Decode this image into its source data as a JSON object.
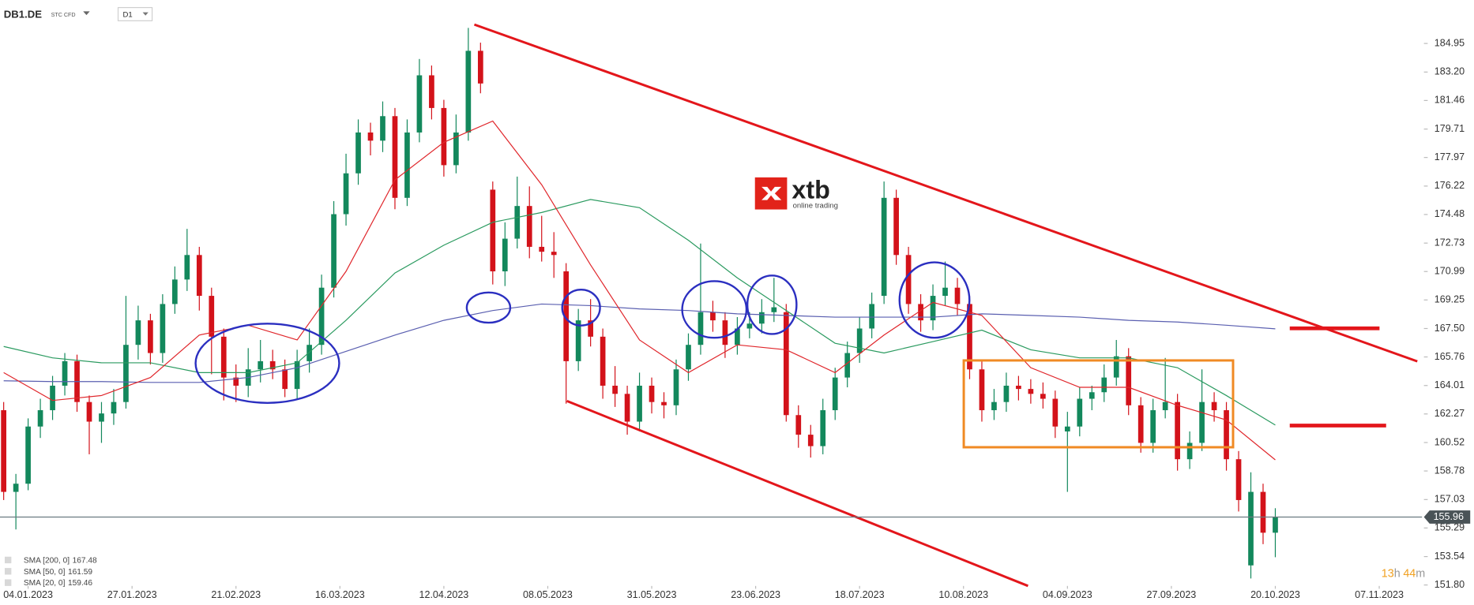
{
  "header": {
    "symbol": "DB1.DE",
    "instrument": "STC CFD",
    "timeframe": "D1"
  },
  "logo": {
    "brand": "xtb",
    "tagline": "online trading"
  },
  "timer": [
    "13",
    "h",
    "44",
    "m"
  ],
  "chart_data": {
    "type": "candlestick",
    "up_color": "#13885c",
    "down_color": "#d3121a",
    "x": [
      0,
      2,
      4,
      6,
      8,
      10,
      12,
      14,
      16,
      18,
      20,
      22,
      24,
      26,
      28,
      30,
      32,
      34,
      36,
      38,
      40,
      42,
      44,
      46,
      48,
      50,
      52,
      54,
      56,
      58,
      60,
      62,
      64,
      66,
      68,
      70,
      72,
      74,
      76,
      78,
      80,
      82,
      84,
      86,
      88,
      90,
      92,
      94,
      96,
      98,
      100,
      102,
      104,
      106,
      108,
      110,
      112,
      114,
      116,
      118,
      120,
      122,
      124,
      126,
      128,
      130,
      132,
      134,
      136,
      138,
      140,
      142,
      144,
      146,
      148,
      150,
      152,
      154,
      156,
      158,
      160,
      162,
      164,
      166,
      168,
      170,
      172,
      174,
      176,
      178,
      180,
      182,
      184,
      186,
      188,
      190,
      192,
      194,
      196,
      198,
      200,
      202,
      204,
      206,
      208
    ],
    "open": [
      162.5,
      157.5,
      158,
      161.5,
      162.5,
      164,
      165.5,
      163,
      161.8,
      162.3,
      163,
      166.5,
      168,
      166,
      169,
      170.5,
      172,
      169.5,
      167,
      164.5,
      164,
      165,
      165.5,
      165,
      163.8,
      165.5,
      166.5,
      170,
      174.5,
      177,
      179.5,
      179,
      180.5,
      175.5,
      179.5,
      183,
      181,
      177.5,
      179.5,
      184.5,
      176,
      171,
      173,
      175,
      172.5,
      172.2,
      171,
      165.5,
      168,
      167,
      164,
      163.5,
      161.8,
      164,
      163,
      162.8,
      165,
      166.5,
      168.5,
      168,
      166.5,
      167.5,
      167.8,
      168.5,
      168.5,
      162.2,
      161,
      160.3,
      162.5,
      164.5,
      166,
      167.5,
      169.5,
      175.5,
      172,
      169,
      168,
      169.5,
      170,
      169,
      165,
      162.5,
      163,
      164,
      163.8,
      163.5,
      163.2,
      161.2,
      161.5,
      163.2,
      163.6,
      164.5,
      165.8,
      162.8,
      160.5,
      162.5,
      163,
      159.5,
      160.5,
      163,
      162.5,
      159.5,
      153,
      157.5,
      155
    ],
    "high": [
      163,
      158.6,
      162,
      163.2,
      164.6,
      166,
      165.9,
      163.4,
      163,
      163.8,
      169.5,
      168.9,
      168.4,
      169.6,
      171.3,
      173.6,
      172.5,
      170,
      167.5,
      165.3,
      166.3,
      166.8,
      166.2,
      165.6,
      166.2,
      167.5,
      170.8,
      175.3,
      178.2,
      180.3,
      180.1,
      181.4,
      181,
      180.3,
      184,
      183.6,
      181.5,
      180.6,
      185.9,
      185,
      176.5,
      174,
      176.8,
      176.2,
      174.4,
      173.4,
      171.5,
      168.7,
      169.3,
      167.5,
      165.2,
      164,
      164.8,
      164.5,
      163.6,
      165.6,
      167.2,
      172.7,
      169.2,
      168.5,
      168.2,
      168.5,
      169.3,
      170.6,
      169,
      162.8,
      161.6,
      163.2,
      165.1,
      166.7,
      168.2,
      169.7,
      176.5,
      176,
      172.5,
      169.6,
      170.2,
      171.6,
      170.6,
      169.5,
      165.5,
      163.8,
      164.8,
      164.6,
      164.4,
      164.2,
      163.7,
      162.4,
      163.9,
      164,
      165.3,
      166.8,
      166.3,
      163.3,
      163.2,
      165.7,
      163.5,
      161.2,
      165,
      163.6,
      163,
      160,
      158.7,
      158,
      156.5
    ],
    "low": [
      157,
      155.2,
      157.6,
      160.8,
      161.9,
      163.4,
      162.4,
      159.8,
      160.5,
      161.6,
      162.6,
      165.6,
      165.3,
      165.4,
      168.4,
      169.8,
      168.6,
      164.7,
      163.1,
      163,
      163.3,
      164.2,
      164.4,
      163.3,
      163.2,
      164.8,
      165.9,
      169.4,
      173.8,
      176.3,
      178.1,
      178.3,
      174.8,
      175,
      178.9,
      180.3,
      176.8,
      177,
      179,
      181.9,
      170.2,
      170.1,
      172.4,
      171.8,
      171.6,
      170.6,
      162.9,
      164.9,
      166.4,
      163.2,
      162.7,
      161,
      161.2,
      162.3,
      162,
      162.2,
      164.3,
      165.9,
      167.3,
      165.7,
      165.9,
      166.9,
      167.2,
      167.9,
      161.8,
      160.2,
      159.6,
      159.8,
      161.9,
      163.9,
      165.4,
      166.9,
      169,
      171.4,
      168.4,
      167.3,
      167.4,
      168.9,
      168.3,
      164.4,
      161.8,
      161.9,
      162.4,
      163.1,
      162.9,
      162.6,
      160.8,
      157.5,
      160.9,
      162.5,
      163,
      164,
      162.2,
      159.9,
      159.9,
      162,
      158.8,
      158.9,
      160,
      161.8,
      158.8,
      156.3,
      152.2,
      154.3,
      153.5
    ],
    "close": [
      157.5,
      158,
      161.5,
      162.5,
      164,
      165.5,
      163,
      161.8,
      162.3,
      163,
      166.5,
      168,
      166,
      169,
      170.5,
      172,
      169.5,
      167,
      164.5,
      164,
      165,
      165.5,
      165,
      163.8,
      165.5,
      166.5,
      170,
      174.5,
      177,
      179.5,
      179,
      180.5,
      175.5,
      179.5,
      183,
      181,
      177.5,
      179.5,
      184.5,
      182.5,
      171,
      173,
      175,
      172.5,
      172.2,
      172,
      165.5,
      168,
      167,
      164,
      163.5,
      161.8,
      164,
      163,
      162.8,
      165,
      166.5,
      168.5,
      168,
      166.5,
      167.5,
      167.8,
      168.5,
      168.8,
      162.2,
      161,
      160.3,
      162.5,
      164.5,
      166,
      167.5,
      169,
      175.5,
      172,
      169,
      168,
      169.5,
      170,
      169,
      165,
      162.5,
      163,
      164,
      163.8,
      163.5,
      163.2,
      161.5,
      161.5,
      163.2,
      163.6,
      164.5,
      165.8,
      162.8,
      160.5,
      162.5,
      163,
      159.5,
      160.5,
      163,
      162.5,
      159.5,
      157,
      157.5,
      155,
      155.96
    ],
    "overlays": [
      {
        "name": "SMA [200, 0]",
        "color": "#5a5fb0",
        "last": 167.48,
        "x": [
          0,
          8,
          16,
          24,
          32,
          40,
          48,
          56,
          64,
          72,
          80,
          88,
          96,
          104,
          112,
          120,
          128,
          136,
          144,
          152,
          160,
          168,
          176,
          184,
          192,
          200,
          208
        ],
        "values": [
          164.3,
          164.25,
          164.25,
          164.2,
          164.2,
          164.5,
          165.1,
          166.1,
          167.1,
          168,
          168.6,
          169,
          168.9,
          168.7,
          168.6,
          168.4,
          168.3,
          168.2,
          168.2,
          168.2,
          168.4,
          168.3,
          168.2,
          168,
          167.9,
          167.7,
          167.48
        ]
      },
      {
        "name": "SMA [50, 0]",
        "color": "#2a9a5f",
        "last": 161.59,
        "x": [
          0,
          8,
          16,
          24,
          32,
          40,
          48,
          56,
          64,
          72,
          80,
          88,
          96,
          104,
          112,
          120,
          128,
          136,
          144,
          152,
          160,
          168,
          176,
          184,
          192,
          200,
          208
        ],
        "values": [
          166.4,
          165.7,
          165.4,
          165.4,
          164.8,
          164.8,
          165.4,
          168,
          170.9,
          172.6,
          174,
          174.6,
          175.4,
          174.9,
          172.9,
          170.6,
          168.6,
          166.6,
          166,
          166.7,
          167.4,
          166.2,
          165.7,
          165.7,
          165.1,
          163.4,
          161.59
        ]
      },
      {
        "name": "SMA [20, 0]",
        "color": "#e0262b",
        "last": 159.46,
        "x": [
          0,
          8,
          16,
          24,
          32,
          40,
          48,
          56,
          64,
          72,
          80,
          88,
          96,
          104,
          112,
          120,
          128,
          136,
          144,
          152,
          160,
          168,
          176,
          184,
          192,
          200,
          208
        ],
        "values": [
          164.8,
          163.1,
          163.4,
          164.5,
          167.1,
          167.7,
          166.8,
          171,
          176.6,
          178.9,
          180.2,
          176.3,
          171.4,
          166.8,
          164.8,
          166.5,
          166.2,
          164.8,
          167.1,
          169.1,
          168.3,
          165.1,
          163.9,
          163.9,
          162.8,
          161.9,
          159.46
        ]
      }
    ],
    "last_price": 155.96,
    "xlim": [
      -0.6,
      232
    ],
    "ylim": [
      151.8,
      187.61
    ],
    "xticks": [
      {
        "value": 4,
        "label": "04.01.2023"
      },
      {
        "value": 21,
        "label": "27.01.2023"
      },
      {
        "value": 38,
        "label": "21.02.2023"
      },
      {
        "value": 55,
        "label": "16.03.2023"
      },
      {
        "value": 72,
        "label": "12.04.2023"
      },
      {
        "value": 89,
        "label": "08.05.2023"
      },
      {
        "value": 106,
        "label": "31.05.2023"
      },
      {
        "value": 123,
        "label": "23.06.2023"
      },
      {
        "value": 140,
        "label": "18.07.2023"
      },
      {
        "value": 157,
        "label": "10.08.2023"
      },
      {
        "value": 174,
        "label": "04.09.2023"
      },
      {
        "value": 191,
        "label": "27.09.2023"
      },
      {
        "value": 208,
        "label": "20.10.2023"
      },
      {
        "value": 225,
        "label": "07.11.2023"
      }
    ],
    "yticks": [
      184.95,
      {
        "value": 183.2,
        "label": "183.20"
      },
      181.46,
      179.71,
      177.97,
      176.22,
      174.48,
      172.73,
      170.99,
      169.25,
      {
        "value": 167.5,
        "label": "167.50"
      },
      165.76,
      164.01,
      162.27,
      160.52,
      158.78,
      157.03,
      155.29,
      153.54,
      {
        "value": 151.8,
        "label": "151.80"
      }
    ]
  }
}
